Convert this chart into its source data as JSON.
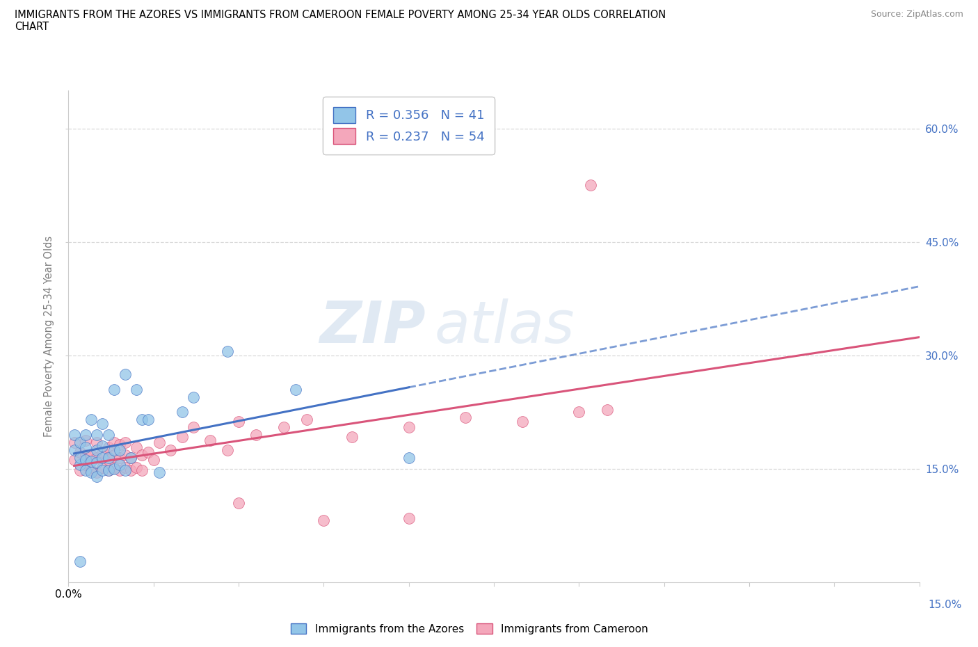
{
  "title_line1": "IMMIGRANTS FROM THE AZORES VS IMMIGRANTS FROM CAMEROON FEMALE POVERTY AMONG 25-34 YEAR OLDS CORRELATION",
  "title_line2": "CHART",
  "source_text": "Source: ZipAtlas.com",
  "ylabel": "Female Poverty Among 25-34 Year Olds",
  "xlim": [
    0.0,
    0.15
  ],
  "ylim": [
    0.0,
    0.65
  ],
  "xticks": [
    0.0,
    0.015,
    0.03,
    0.045,
    0.06,
    0.075,
    0.09,
    0.105,
    0.12,
    0.135,
    0.15
  ],
  "xtick_labels_show": {
    "0.0": "0.0%",
    "0.15": "15.0%"
  },
  "yticks_right": [
    0.15,
    0.3,
    0.45,
    0.6
  ],
  "ytick_labels_right": [
    "15.0%",
    "30.0%",
    "45.0%",
    "60.0%"
  ],
  "color_azores": "#92c5e8",
  "color_cameroon": "#f4a7bb",
  "line_color_azores": "#4472c4",
  "line_color_cameroon": "#d9547a",
  "R_azores": "0.356",
  "N_azores": "41",
  "R_cameroon": "0.237",
  "N_cameroon": "54",
  "legend_label_azores": "Immigrants from the Azores",
  "legend_label_cameroon": "Immigrants from Cameroon",
  "watermark_zip": "ZIP",
  "watermark_atlas": "atlas",
  "azores_x": [
    0.001,
    0.001,
    0.002,
    0.002,
    0.002,
    0.003,
    0.003,
    0.003,
    0.003,
    0.004,
    0.004,
    0.004,
    0.005,
    0.005,
    0.005,
    0.005,
    0.006,
    0.006,
    0.006,
    0.006,
    0.007,
    0.007,
    0.007,
    0.008,
    0.008,
    0.008,
    0.009,
    0.009,
    0.01,
    0.01,
    0.011,
    0.012,
    0.013,
    0.014,
    0.016,
    0.02,
    0.022,
    0.028,
    0.04,
    0.06,
    0.002
  ],
  "azores_y": [
    0.175,
    0.195,
    0.155,
    0.165,
    0.185,
    0.148,
    0.162,
    0.178,
    0.195,
    0.145,
    0.16,
    0.215,
    0.14,
    0.158,
    0.175,
    0.195,
    0.148,
    0.165,
    0.18,
    0.21,
    0.148,
    0.165,
    0.195,
    0.15,
    0.175,
    0.255,
    0.155,
    0.175,
    0.148,
    0.275,
    0.165,
    0.255,
    0.215,
    0.215,
    0.145,
    0.225,
    0.245,
    0.305,
    0.255,
    0.165,
    0.028
  ],
  "cameroon_x": [
    0.001,
    0.001,
    0.002,
    0.002,
    0.003,
    0.003,
    0.003,
    0.004,
    0.004,
    0.005,
    0.005,
    0.005,
    0.006,
    0.006,
    0.007,
    0.007,
    0.007,
    0.008,
    0.008,
    0.008,
    0.009,
    0.009,
    0.009,
    0.01,
    0.01,
    0.01,
    0.011,
    0.011,
    0.012,
    0.012,
    0.013,
    0.013,
    0.014,
    0.015,
    0.016,
    0.018,
    0.02,
    0.022,
    0.025,
    0.028,
    0.03,
    0.033,
    0.038,
    0.042,
    0.05,
    0.06,
    0.07,
    0.08,
    0.09,
    0.095,
    0.03,
    0.045,
    0.06,
    0.092
  ],
  "cameroon_y": [
    0.162,
    0.185,
    0.148,
    0.172,
    0.155,
    0.168,
    0.188,
    0.148,
    0.168,
    0.145,
    0.165,
    0.185,
    0.152,
    0.172,
    0.148,
    0.162,
    0.178,
    0.152,
    0.168,
    0.185,
    0.148,
    0.165,
    0.182,
    0.152,
    0.168,
    0.185,
    0.148,
    0.165,
    0.152,
    0.178,
    0.148,
    0.168,
    0.172,
    0.162,
    0.185,
    0.175,
    0.192,
    0.205,
    0.188,
    0.175,
    0.212,
    0.195,
    0.205,
    0.215,
    0.192,
    0.205,
    0.218,
    0.212,
    0.225,
    0.228,
    0.105,
    0.082,
    0.085,
    0.525
  ]
}
